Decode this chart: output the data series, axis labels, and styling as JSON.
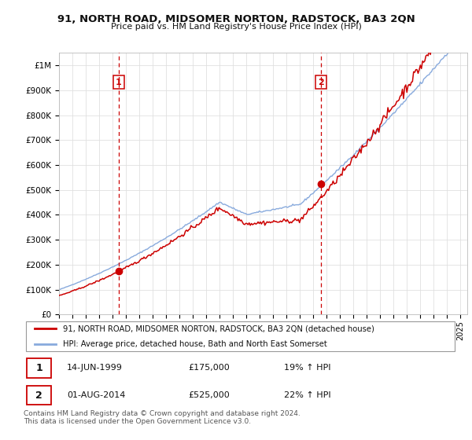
{
  "title": "91, NORTH ROAD, MIDSOMER NORTON, RADSTOCK, BA3 2QN",
  "subtitle": "Price paid vs. HM Land Registry's House Price Index (HPI)",
  "xlim_start": 1995.0,
  "xlim_end": 2025.5,
  "ylim_min": 0,
  "ylim_max": 1050000,
  "yticks": [
    0,
    100000,
    200000,
    300000,
    400000,
    500000,
    600000,
    700000,
    800000,
    900000,
    1000000
  ],
  "ytick_labels": [
    "£0",
    "£100K",
    "£200K",
    "£300K",
    "£400K",
    "£500K",
    "£600K",
    "£700K",
    "£800K",
    "£900K",
    "£1M"
  ],
  "xticks": [
    1995,
    1996,
    1997,
    1998,
    1999,
    2000,
    2001,
    2002,
    2003,
    2004,
    2005,
    2006,
    2007,
    2008,
    2009,
    2010,
    2011,
    2012,
    2013,
    2014,
    2015,
    2016,
    2017,
    2018,
    2019,
    2020,
    2021,
    2022,
    2023,
    2024,
    2025
  ],
  "sale1_x": 1999.45,
  "sale1_y": 175000,
  "sale1_label": "1",
  "sale2_x": 2014.58,
  "sale2_y": 525000,
  "sale2_label": "2",
  "line_color_red": "#cc0000",
  "line_color_blue": "#88aadd",
  "vline_color": "#cc0000",
  "grid_color": "#e0e0e0",
  "bg_color": "#ffffff",
  "legend_label_red": "91, NORTH ROAD, MIDSOMER NORTON, RADSTOCK, BA3 2QN (detached house)",
  "legend_label_blue": "HPI: Average price, detached house, Bath and North East Somerset",
  "table_rows": [
    {
      "num": "1",
      "date": "14-JUN-1999",
      "price": "£175,000",
      "change": "19% ↑ HPI"
    },
    {
      "num": "2",
      "date": "01-AUG-2014",
      "price": "£525,000",
      "change": "22% ↑ HPI"
    }
  ],
  "footnote": "Contains HM Land Registry data © Crown copyright and database right 2024.\nThis data is licensed under the Open Government Licence v3.0."
}
